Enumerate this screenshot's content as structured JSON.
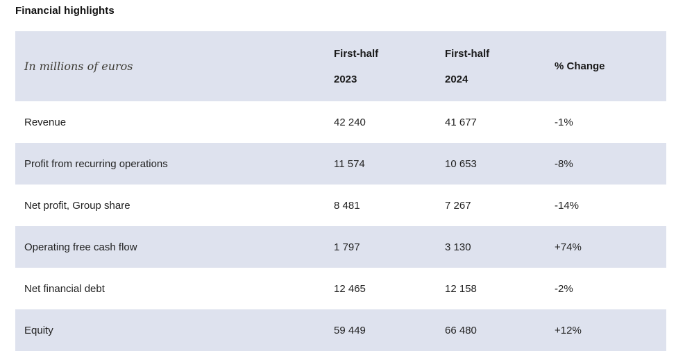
{
  "page": {
    "title": "Financial highlights"
  },
  "table": {
    "header": {
      "units_label": "In millions of euros",
      "col_2023_line1": "First-half",
      "col_2023_line2": "2023",
      "col_2024_line1": "First-half",
      "col_2024_line2": "2024",
      "col_change": "% Change"
    },
    "rows": [
      {
        "label": "Revenue",
        "fh2023": "42 240",
        "fh2024": "41 677",
        "change": "-1%"
      },
      {
        "label": "Profit from recurring operations",
        "fh2023": "11 574",
        "fh2024": "10 653",
        "change": "-8%"
      },
      {
        "label": "Net profit, Group share",
        "fh2023": "8 481",
        "fh2024": "7 267",
        "change": "-14%"
      },
      {
        "label": "Operating free cash flow",
        "fh2023": "1 797",
        "fh2024": "3 130",
        "change": "+74%"
      },
      {
        "label": "Net financial debt",
        "fh2023": "12 465",
        "fh2024": "12 158",
        "change": "-2%"
      },
      {
        "label": "Equity",
        "fh2023": "59 449",
        "fh2024": "66 480",
        "change": "+12%"
      }
    ],
    "colors": {
      "band_background": "#dee2ee",
      "row_background": "#ffffff",
      "text": "#222222"
    }
  }
}
